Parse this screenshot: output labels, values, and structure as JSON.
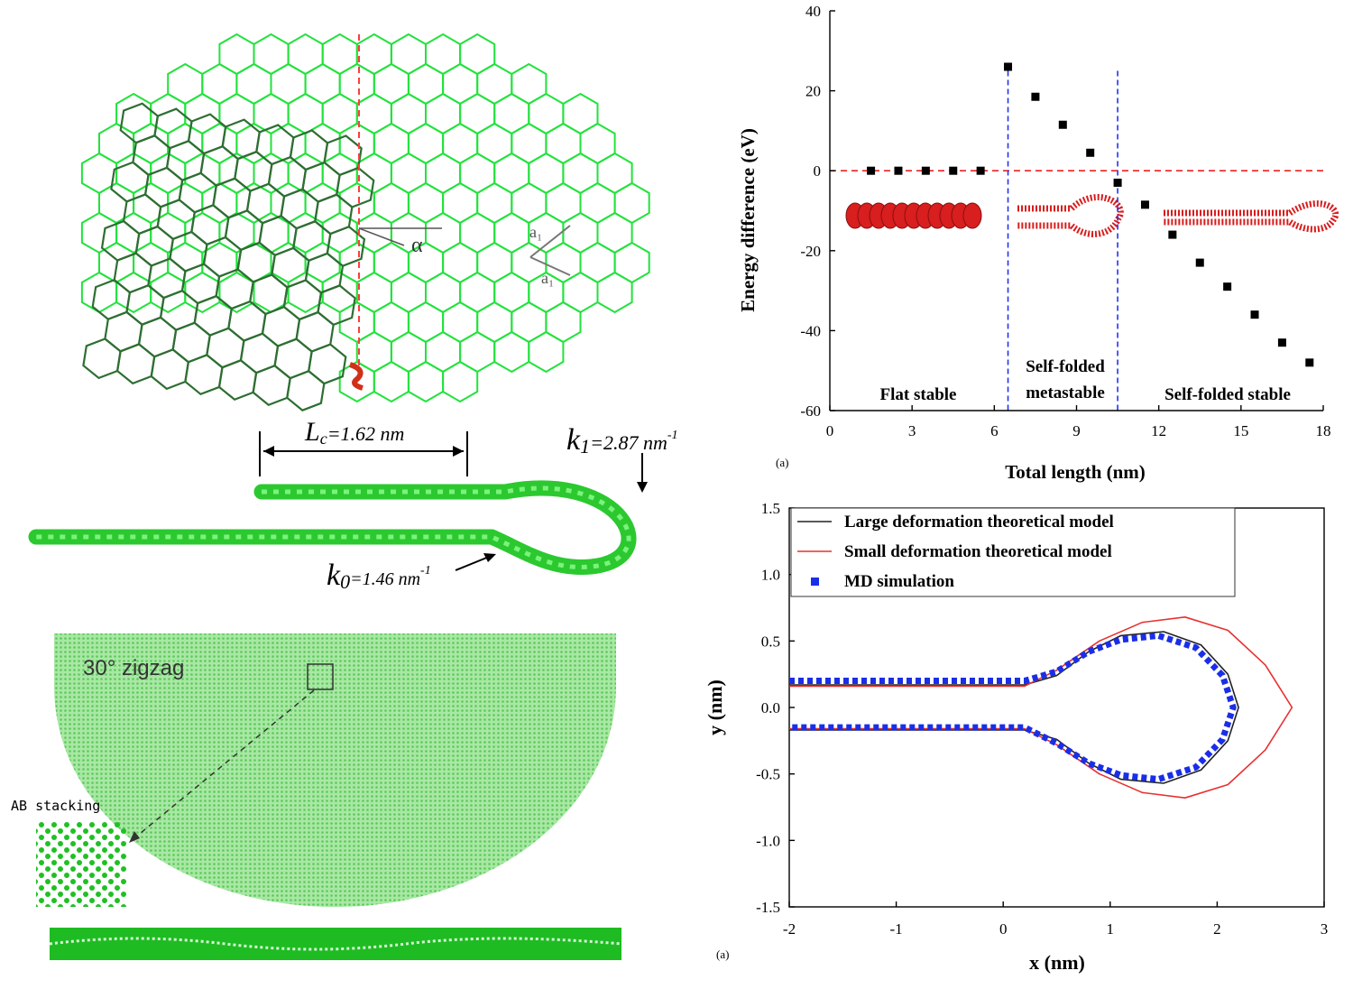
{
  "lattice": {
    "alpha_label": "α",
    "a1_label": "a₁",
    "a2_label": "a₁"
  },
  "ribbon": {
    "lc_label": "L",
    "lc_sub": "c",
    "lc_value": "=1.62 nm",
    "k1_label": "k",
    "k1_sub": "1",
    "k1_value": "=2.87 nm",
    "k1_exp": "-1",
    "k0_label": "k",
    "k0_sub": "0",
    "k0_value": "=1.46 nm",
    "k0_exp": "-1"
  },
  "flake": {
    "label": "30° zigzag",
    "stacking_label": "AB stacking"
  },
  "chart_data": [
    {
      "type": "scatter",
      "panel_label": "(a)",
      "xlabel": "Total length (nm)",
      "ylabel": "Energy difference (eV)",
      "xlim": [
        0,
        18
      ],
      "ylim": [
        -60,
        40
      ],
      "xticks": [
        0,
        3,
        6,
        9,
        12,
        15,
        18
      ],
      "yticks": [
        -60,
        -40,
        -20,
        0,
        20,
        40
      ],
      "series": [
        {
          "x": [
            1.5,
            2.5,
            3.5,
            4.5,
            5.5,
            6.5,
            7.5,
            8.5,
            9.5,
            10.5,
            11.5,
            12.5,
            13.5,
            14.5,
            15.5,
            16.5,
            17.5
          ],
          "y": [
            0,
            0,
            0,
            0,
            0,
            26,
            18.5,
            11.5,
            4.5,
            -3,
            -8.5,
            -16,
            -23,
            -29,
            -36,
            -43,
            -48
          ]
        }
      ],
      "reference_lines": {
        "horizontal_y": 0,
        "vertical_x": [
          6.5,
          10.5
        ]
      },
      "regions": [
        "Flat stable",
        "Self-folded metastable",
        "Self-folded stable"
      ]
    },
    {
      "type": "line",
      "panel_label": "(a)",
      "xlabel": "x (nm)",
      "ylabel": "y (nm)",
      "xlim": [
        -2,
        3
      ],
      "ylim": [
        -1.5,
        1.5
      ],
      "xticks": [
        -2,
        -1,
        0,
        1,
        2,
        3
      ],
      "yticks": [
        -1.5,
        -1.0,
        -0.5,
        0.0,
        0.5,
        1.0,
        1.5
      ],
      "legend_position": "top-left",
      "series": [
        {
          "name": "Large deformation theoretical model",
          "color": "#222222",
          "style": "solid",
          "x": [
            -2,
            0.2,
            0.5,
            0.8,
            1.1,
            1.5,
            1.85,
            2.1,
            2.2,
            2.1,
            1.85,
            1.5,
            1.1,
            0.8,
            0.5,
            0.2,
            -2
          ],
          "y": [
            0.17,
            0.17,
            0.24,
            0.42,
            0.54,
            0.57,
            0.47,
            0.25,
            0.0,
            -0.25,
            -0.47,
            -0.57,
            -0.54,
            -0.42,
            -0.24,
            -0.17,
            -0.17
          ]
        },
        {
          "name": "Small deformation theoretical model",
          "color": "#e83030",
          "style": "solid",
          "x": [
            -2,
            0.2,
            0.5,
            0.9,
            1.3,
            1.7,
            2.1,
            2.45,
            2.7,
            2.45,
            2.1,
            1.7,
            1.3,
            0.9,
            0.5,
            0.2,
            -2
          ],
          "y": [
            0.16,
            0.16,
            0.28,
            0.5,
            0.64,
            0.68,
            0.58,
            0.32,
            0.0,
            -0.32,
            -0.58,
            -0.68,
            -0.64,
            -0.5,
            -0.28,
            -0.16,
            -0.16
          ]
        },
        {
          "name": "MD simulation",
          "color": "#1a2ee8",
          "style": "dotted",
          "x": [
            -2,
            0.2,
            0.5,
            0.8,
            1.1,
            1.45,
            1.8,
            2.05,
            2.15,
            2.05,
            1.8,
            1.45,
            1.1,
            0.8,
            0.5,
            0.2,
            -2
          ],
          "y": [
            0.2,
            0.2,
            0.27,
            0.42,
            0.51,
            0.54,
            0.45,
            0.24,
            0.0,
            -0.24,
            -0.45,
            -0.54,
            -0.51,
            -0.42,
            -0.27,
            -0.15,
            -0.15
          ]
        }
      ]
    }
  ],
  "colors": {
    "light_green": "#22e23c",
    "dark_green": "#2e6e32",
    "ribbon_green": "#36d43a",
    "flake_green": "#8ee08a",
    "dots": "#d81e1e"
  }
}
